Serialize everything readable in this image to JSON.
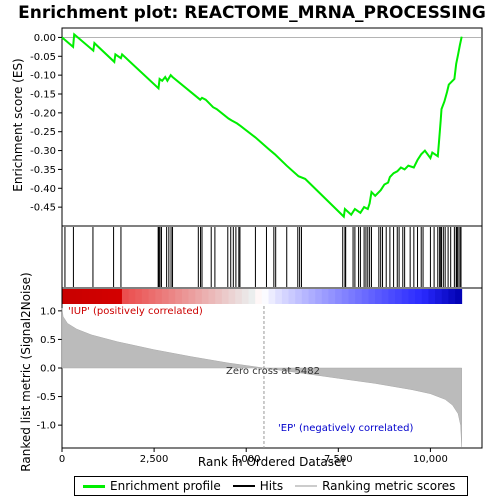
{
  "chart_data": {
    "type": "line",
    "title": "Enrichment plot: REACTOME_MRNA_PROCESSING",
    "xlabel": "Rank in Ordered Dataset",
    "ylabel_top": "Enrichment score (ES)",
    "ylabel_bottom": "Ranked list metric (Signal2Noise)",
    "x_range": [
      0,
      11400
    ],
    "x_ticks": [
      0,
      2500,
      5000,
      7500,
      10000
    ],
    "x_tick_labels": [
      "0",
      "2,500",
      "5,000",
      "7,500",
      "10,000"
    ],
    "es_ylim": [
      -0.5,
      0.025
    ],
    "es_ticks": [
      0.0,
      -0.05,
      -0.1,
      -0.15,
      -0.2,
      -0.25,
      -0.3,
      -0.35,
      -0.4,
      -0.45
    ],
    "es_tick_labels": [
      "0.00",
      "-0.05",
      "-0.10",
      "-0.15",
      "-0.20",
      "-0.25",
      "-0.30",
      "-0.35",
      "-0.40",
      "-0.45"
    ],
    "metric_ylim": [
      -1.4,
      1.4
    ],
    "metric_ticks": [
      1.0,
      0.5,
      0.0,
      -0.5,
      -1.0
    ],
    "metric_tick_labels": [
      "1.0",
      "0.5",
      "0.0",
      "-0.5",
      "-1.0"
    ],
    "dataset_size": 10850,
    "zero_cross": 5482,
    "annotation_zero": "Zero cross at 5482",
    "annotation_pos": "'IUP' (positively correlated)",
    "annotation_neg": "'EP' (negatively correlated)",
    "es_curve": [
      [
        0,
        0.0
      ],
      [
        300,
        -0.025
      ],
      [
        330,
        0.008
      ],
      [
        850,
        -0.035
      ],
      [
        880,
        -0.015
      ],
      [
        1420,
        -0.065
      ],
      [
        1450,
        -0.045
      ],
      [
        1600,
        -0.055
      ],
      [
        1630,
        -0.045
      ],
      [
        2620,
        -0.135
      ],
      [
        2650,
        -0.11
      ],
      [
        2720,
        -0.115
      ],
      [
        2800,
        -0.105
      ],
      [
        2860,
        -0.115
      ],
      [
        2950,
        -0.1
      ],
      [
        3000,
        -0.105
      ],
      [
        3750,
        -0.165
      ],
      [
        3800,
        -0.16
      ],
      [
        3900,
        -0.165
      ],
      [
        4100,
        -0.185
      ],
      [
        4200,
        -0.19
      ],
      [
        4520,
        -0.215
      ],
      [
        4600,
        -0.22
      ],
      [
        4750,
        -0.228
      ],
      [
        4850,
        -0.235
      ],
      [
        5250,
        -0.265
      ],
      [
        5600,
        -0.295
      ],
      [
        5780,
        -0.31
      ],
      [
        6100,
        -0.34
      ],
      [
        6420,
        -0.368
      ],
      [
        6600,
        -0.375
      ],
      [
        7650,
        -0.475
      ],
      [
        7680,
        -0.455
      ],
      [
        7850,
        -0.47
      ],
      [
        7950,
        -0.455
      ],
      [
        8100,
        -0.465
      ],
      [
        8200,
        -0.45
      ],
      [
        8300,
        -0.455
      ],
      [
        8350,
        -0.44
      ],
      [
        8400,
        -0.41
      ],
      [
        8500,
        -0.42
      ],
      [
        8650,
        -0.405
      ],
      [
        8750,
        -0.39
      ],
      [
        8850,
        -0.385
      ],
      [
        8900,
        -0.37
      ],
      [
        9000,
        -0.36
      ],
      [
        9100,
        -0.355
      ],
      [
        9200,
        -0.345
      ],
      [
        9300,
        -0.35
      ],
      [
        9400,
        -0.34
      ],
      [
        9550,
        -0.345
      ],
      [
        9650,
        -0.325
      ],
      [
        9750,
        -0.31
      ],
      [
        9850,
        -0.3
      ],
      [
        10000,
        -0.32
      ],
      [
        10050,
        -0.305
      ],
      [
        10200,
        -0.315
      ],
      [
        10230,
        -0.28
      ],
      [
        10280,
        -0.22
      ],
      [
        10300,
        -0.19
      ],
      [
        10380,
        -0.17
      ],
      [
        10450,
        -0.145
      ],
      [
        10500,
        -0.125
      ],
      [
        10650,
        -0.11
      ],
      [
        10700,
        -0.07
      ],
      [
        10750,
        -0.045
      ],
      [
        10800,
        -0.02
      ],
      [
        10850,
        0.002
      ]
    ],
    "hits": [
      80,
      310,
      840,
      1400,
      1600,
      2610,
      2630,
      2660,
      2700,
      2840,
      2900,
      2960,
      3000,
      3700,
      3760,
      3800,
      4050,
      4150,
      4500,
      4580,
      4650,
      4720,
      4800,
      4830,
      5250,
      5550,
      5750,
      5800,
      6100,
      6400,
      6450,
      6500,
      7620,
      7680,
      7700,
      7900,
      7950,
      8050,
      8100,
      8200,
      8250,
      8300,
      8350,
      8400,
      8600,
      8650,
      8700,
      8800,
      8900,
      9000,
      9100,
      9150,
      9250,
      9300,
      9450,
      9550,
      9650,
      9750,
      9800,
      10000,
      10100,
      10200,
      10250,
      10280,
      10300,
      10350,
      10400,
      10480,
      10550,
      10650,
      10700,
      10720,
      10750,
      10800,
      10830
    ],
    "metric_curve": [
      [
        0,
        1.05
      ],
      [
        30,
        0.9
      ],
      [
        150,
        0.78
      ],
      [
        400,
        0.68
      ],
      [
        800,
        0.58
      ],
      [
        1500,
        0.46
      ],
      [
        2500,
        0.32
      ],
      [
        3500,
        0.2
      ],
      [
        4500,
        0.09
      ],
      [
        5482,
        0.0
      ],
      [
        6500,
        -0.09
      ],
      [
        7500,
        -0.18
      ],
      [
        8500,
        -0.27
      ],
      [
        9500,
        -0.38
      ],
      [
        10000,
        -0.45
      ],
      [
        10400,
        -0.55
      ],
      [
        10600,
        -0.65
      ],
      [
        10750,
        -0.8
      ],
      [
        10820,
        -1.0
      ],
      [
        10850,
        -1.38
      ]
    ],
    "legend": [
      "Enrichment profile",
      "Hits",
      "Ranking metric scores"
    ],
    "colors": {
      "profile": "#00ee00",
      "hits": "#000000",
      "metric": "#bbbbbb",
      "zero": "#999999",
      "pos_text": "#cc0000",
      "neg_text": "#0000cc"
    }
  }
}
